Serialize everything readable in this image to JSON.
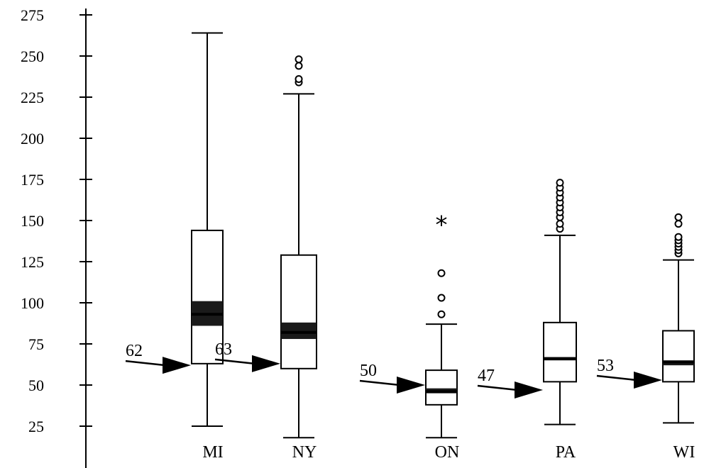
{
  "chart_data": {
    "type": "box",
    "title": "",
    "xlabel": "",
    "ylabel": "",
    "ylim": [
      15,
      280
    ],
    "yticks": [
      25,
      50,
      75,
      100,
      125,
      150,
      175,
      200,
      225,
      250,
      275
    ],
    "grid": false,
    "categories": [
      "MI",
      "NY",
      "ON",
      "PA",
      "WI"
    ],
    "boxes": [
      {
        "label": "MI",
        "min": 25,
        "q1": 63,
        "median": 93,
        "q3": 144,
        "max": 264,
        "median_band": [
          86,
          101
        ],
        "outliers": [],
        "extremes": []
      },
      {
        "label": "NY",
        "min": 18,
        "q1": 60,
        "median": 82,
        "q3": 129,
        "max": 227,
        "median_band": [
          78,
          88
        ],
        "outliers": [
          234,
          236,
          244,
          248
        ],
        "extremes": []
      },
      {
        "label": "ON",
        "min": 18,
        "q1": 38,
        "median": 46,
        "q3": 59,
        "max": 87,
        "median_band": [
          45,
          48
        ],
        "outliers": [
          93,
          103,
          118
        ],
        "extremes": [
          148
        ]
      },
      {
        "label": "PA",
        "min": 26,
        "q1": 52,
        "median": 66,
        "q3": 88,
        "max": 141,
        "median_band": [
          65,
          67
        ],
        "outliers": [
          145,
          148,
          152,
          155,
          158,
          161,
          164,
          167,
          170,
          173
        ],
        "extremes": []
      },
      {
        "label": "WI",
        "min": 27,
        "q1": 52,
        "median": 64,
        "q3": 83,
        "max": 126,
        "median_band": [
          62,
          65
        ],
        "outliers": [
          130,
          132,
          134,
          136,
          138,
          140,
          148,
          152
        ],
        "extremes": []
      }
    ],
    "annotations": [
      {
        "category": "MI",
        "text": "62",
        "value": 62
      },
      {
        "category": "NY",
        "text": "63",
        "value": 63
      },
      {
        "category": "ON",
        "text": "50",
        "value": 50
      },
      {
        "category": "PA",
        "text": "47",
        "value": 47
      },
      {
        "category": "WI",
        "text": "53",
        "value": 53
      }
    ]
  }
}
